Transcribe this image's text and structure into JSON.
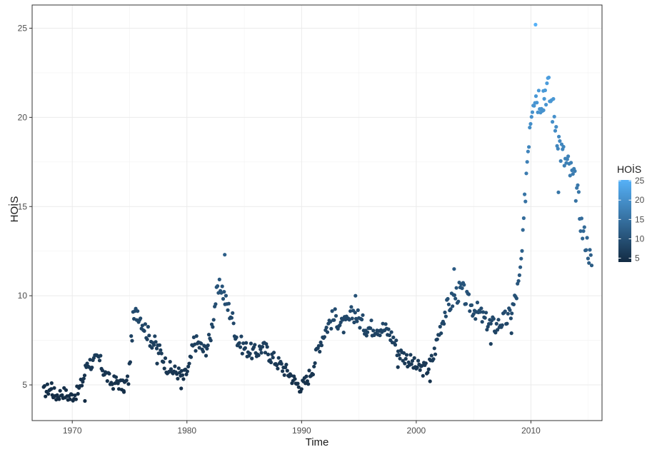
{
  "chart_data": {
    "type": "scatter",
    "xlabel": "Time",
    "ylabel": "HOİS",
    "xlim": [
      1966.5,
      2016.2
    ],
    "ylim": [
      3.0,
      26.3
    ],
    "x_ticks": [
      1970,
      1980,
      1990,
      2000,
      2010
    ],
    "y_ticks": [
      5,
      10,
      15,
      20,
      25
    ],
    "grid": true,
    "legend": {
      "title": "HOİS",
      "position": "right",
      "ticks": [
        5,
        10,
        15,
        20,
        25
      ],
      "range": [
        4,
        25.2
      ],
      "color_low": "#132B43",
      "color_high": "#56B1F7"
    },
    "anchors": [
      [
        1967.5,
        4.6
      ],
      [
        1968.0,
        4.8
      ],
      [
        1968.6,
        4.4
      ],
      [
        1969.2,
        4.6
      ],
      [
        1969.8,
        4.3
      ],
      [
        1970.5,
        4.6
      ],
      [
        1971.0,
        5.4
      ],
      [
        1971.3,
        6.3
      ],
      [
        1971.8,
        6.2
      ],
      [
        1972.3,
        6.5
      ],
      [
        1972.8,
        5.7
      ],
      [
        1973.4,
        5.1
      ],
      [
        1973.9,
        5.2
      ],
      [
        1974.4,
        4.9
      ],
      [
        1974.9,
        5.3
      ],
      [
        1975.3,
        8.6
      ],
      [
        1975.7,
        9.2
      ],
      [
        1976.2,
        8.4
      ],
      [
        1976.7,
        7.7
      ],
      [
        1977.2,
        7.3
      ],
      [
        1977.7,
        6.8
      ],
      [
        1978.2,
        6.1
      ],
      [
        1978.7,
        5.8
      ],
      [
        1979.2,
        5.7
      ],
      [
        1979.7,
        5.4
      ],
      [
        1980.2,
        6.0
      ],
      [
        1980.6,
        7.4
      ],
      [
        1981.0,
        7.3
      ],
      [
        1981.5,
        6.9
      ],
      [
        1982.0,
        7.5
      ],
      [
        1982.5,
        9.8
      ],
      [
        1983.0,
        10.6
      ],
      [
        1983.4,
        9.6
      ],
      [
        1983.9,
        8.9
      ],
      [
        1984.4,
        7.5
      ],
      [
        1985.0,
        7.1
      ],
      [
        1985.5,
        6.9
      ],
      [
        1986.0,
        6.8
      ],
      [
        1986.5,
        7.1
      ],
      [
        1987.0,
        6.9
      ],
      [
        1987.5,
        6.5
      ],
      [
        1988.0,
        6.2
      ],
      [
        1988.5,
        5.9
      ],
      [
        1989.0,
        5.6
      ],
      [
        1989.5,
        5.1
      ],
      [
        1990.0,
        4.9
      ],
      [
        1990.5,
        5.3
      ],
      [
        1991.0,
        6.0
      ],
      [
        1991.5,
        7.2
      ],
      [
        1992.0,
        8.0
      ],
      [
        1992.5,
        8.6
      ],
      [
        1993.0,
        8.8
      ],
      [
        1993.5,
        8.3
      ],
      [
        1994.0,
        8.4
      ],
      [
        1994.5,
        9.1
      ],
      [
        1995.0,
        8.7
      ],
      [
        1995.5,
        8.3
      ],
      [
        1996.0,
        8.2
      ],
      [
        1996.5,
        8.3
      ],
      [
        1997.0,
        8.2
      ],
      [
        1997.5,
        8.0
      ],
      [
        1998.0,
        7.6
      ],
      [
        1998.5,
        6.8
      ],
      [
        1999.0,
        6.6
      ],
      [
        1999.5,
        6.3
      ],
      [
        2000.0,
        6.0
      ],
      [
        2000.5,
        5.9
      ],
      [
        2001.0,
        5.9
      ],
      [
        2001.5,
        6.6
      ],
      [
        2002.0,
        8.0
      ],
      [
        2002.5,
        9.1
      ],
      [
        2003.0,
        9.6
      ],
      [
        2003.5,
        10.1
      ],
      [
        2004.0,
        10.3
      ],
      [
        2004.5,
        9.6
      ],
      [
        2005.0,
        9.3
      ],
      [
        2005.5,
        9.0
      ],
      [
        2006.0,
        8.6
      ],
      [
        2006.5,
        8.4
      ],
      [
        2007.0,
        8.3
      ],
      [
        2007.5,
        8.6
      ],
      [
        2008.0,
        8.7
      ],
      [
        2008.5,
        9.5
      ],
      [
        2009.0,
        10.8
      ],
      [
        2009.3,
        13.0
      ],
      [
        2009.6,
        17.0
      ],
      [
        2009.9,
        19.8
      ],
      [
        2010.2,
        21.5
      ],
      [
        2010.6,
        21.2
      ],
      [
        2011.0,
        21.3
      ],
      [
        2011.4,
        21.8
      ],
      [
        2011.8,
        20.8
      ],
      [
        2012.2,
        19.6
      ],
      [
        2012.6,
        18.2
      ],
      [
        2013.0,
        17.5
      ],
      [
        2013.5,
        16.9
      ],
      [
        2014.0,
        15.9
      ],
      [
        2014.5,
        13.6
      ],
      [
        2014.9,
        12.9
      ],
      [
        2015.3,
        11.7
      ]
    ],
    "outliers": [
      [
        1983.3,
        12.3
      ],
      [
        1994.7,
        10.0
      ],
      [
        2003.3,
        11.5
      ],
      [
        2010.4,
        25.2
      ],
      [
        1974.5,
        4.6
      ],
      [
        1968.2,
        5.1
      ],
      [
        1971.1,
        4.1
      ],
      [
        1979.5,
        4.8
      ],
      [
        2001.2,
        5.2
      ],
      [
        2006.5,
        7.3
      ],
      [
        2008.3,
        7.9
      ],
      [
        1977.4,
        6.2
      ],
      [
        1998.4,
        6.0
      ],
      [
        2012.4,
        15.8
      ],
      [
        2011.1,
        20.4
      ]
    ]
  }
}
